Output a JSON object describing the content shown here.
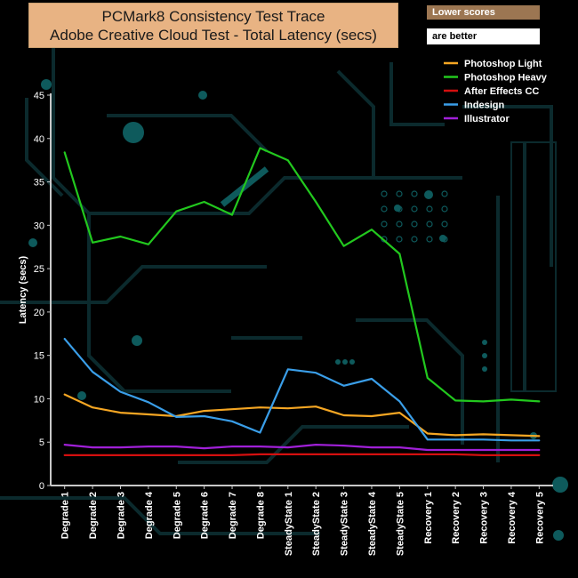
{
  "colors": {
    "background": "#000000",
    "title_bg": "#e8b383",
    "badge_bg": "#9c7652",
    "circuit": "#0b2a2d",
    "circuit_bright": "#0e5a5c",
    "axis": "#c8c8c8"
  },
  "badges": {
    "lower_scores": "Lower scores",
    "are_better": "are better"
  },
  "chart_data": {
    "type": "line",
    "title": "PCMark8 Consistency Test Trace",
    "subtitle": "Adobe Creative Cloud Test -  Total Latency (secs)",
    "xlabel": "",
    "ylabel": "Latency (secs)",
    "ylim": [
      0,
      45
    ],
    "yticks": [
      0,
      5,
      10,
      15,
      20,
      25,
      30,
      35,
      40,
      45
    ],
    "legend_position": "top-right",
    "categories": [
      "Degrade 1",
      "Degrade 2",
      "Degrade 3",
      "Degrade 4",
      "Degrade 5",
      "Degrade 6",
      "Degrade 7",
      "Degrade 8",
      "SteadyState 1",
      "SteadyState 2",
      "SteadyState 3",
      "SteadyState 4",
      "SteadyState 5",
      "Recovery 1",
      "Recovery 2",
      "Recovery 3",
      "Recovery 4",
      "Recovery 5"
    ],
    "series": [
      {
        "name": "Photoshop Light",
        "color": "#f5a623",
        "values": [
          10.5,
          9.0,
          8.4,
          8.2,
          8.0,
          8.6,
          8.8,
          9.0,
          8.9,
          9.1,
          8.1,
          8.0,
          8.4,
          6.0,
          5.8,
          5.9,
          5.8,
          5.7
        ]
      },
      {
        "name": " Photoshop Heavy",
        "color": "#22c81e",
        "values": [
          38.4,
          28.0,
          28.7,
          27.8,
          31.6,
          32.7,
          31.2,
          38.9,
          37.5,
          32.7,
          27.6,
          29.5,
          26.7,
          12.4,
          9.8,
          9.7,
          9.9,
          9.7
        ]
      },
      {
        "name": "After Effects CC",
        "color": "#d40f0f",
        "values": [
          3.5,
          3.5,
          3.5,
          3.5,
          3.5,
          3.5,
          3.5,
          3.6,
          3.6,
          3.6,
          3.6,
          3.6,
          3.6,
          3.6,
          3.6,
          3.5,
          3.5,
          3.5
        ]
      },
      {
        "name": "Indesign",
        "color": "#3a9ee8",
        "values": [
          16.9,
          13.1,
          10.8,
          9.6,
          7.9,
          8.0,
          7.4,
          6.1,
          13.4,
          13.0,
          11.5,
          12.3,
          9.7,
          5.3,
          5.3,
          5.3,
          5.2,
          5.2
        ]
      },
      {
        "name": "Illustrator",
        "color": "#a020d8",
        "values": [
          4.7,
          4.4,
          4.4,
          4.5,
          4.5,
          4.3,
          4.5,
          4.5,
          4.4,
          4.7,
          4.6,
          4.4,
          4.4,
          4.1,
          4.1,
          4.1,
          4.1,
          4.1
        ]
      }
    ]
  }
}
